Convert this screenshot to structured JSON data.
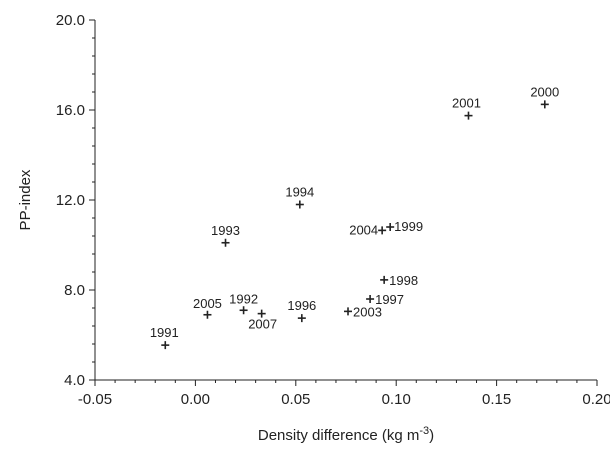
{
  "chart_data": {
    "type": "scatter",
    "xlabel": "Density difference (kg m",
    "xlabel_sup": "-3",
    "xlabel_end": ")",
    "ylabel": "PP-index",
    "xlim": [
      -0.05,
      0.2
    ],
    "ylim": [
      4.0,
      20.0
    ],
    "x_ticks": [
      -0.05,
      0.0,
      0.05,
      0.1,
      0.15,
      0.2
    ],
    "x_tick_labels": [
      "-0.05",
      "0.00",
      "0.05",
      "0.10",
      "0.15",
      "0.20"
    ],
    "y_ticks": [
      4,
      8,
      12,
      16,
      20
    ],
    "y_tick_labels": [
      "4.0",
      "8.0",
      "12.0",
      "16.0",
      "20.0"
    ],
    "grid": false,
    "points": [
      {
        "label": "1991",
        "x": -0.015,
        "y": 5.55
      },
      {
        "label": "1992",
        "x": 0.024,
        "y": 7.1
      },
      {
        "label": "1993",
        "x": 0.015,
        "y": 10.1
      },
      {
        "label": "1994",
        "x": 0.052,
        "y": 11.8
      },
      {
        "label": "1996",
        "x": 0.053,
        "y": 6.75
      },
      {
        "label": "1997",
        "x": 0.087,
        "y": 7.6
      },
      {
        "label": "1998",
        "x": 0.094,
        "y": 8.45
      },
      {
        "label": "1999",
        "x": 0.097,
        "y": 10.8
      },
      {
        "label": "2000",
        "x": 0.174,
        "y": 16.25
      },
      {
        "label": "2001",
        "x": 0.136,
        "y": 15.75
      },
      {
        "label": "2003",
        "x": 0.076,
        "y": 7.05
      },
      {
        "label": "2004",
        "x": 0.093,
        "y": 10.65
      },
      {
        "label": "2005",
        "x": 0.006,
        "y": 6.9
      },
      {
        "label": "2007",
        "x": 0.033,
        "y": 6.95
      }
    ]
  }
}
